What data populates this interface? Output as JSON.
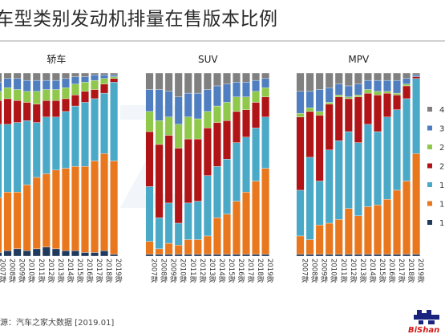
{
  "title": "车型类别发动机排量在售版本比例",
  "source": "源：汽车之家大数据 [2019.01]",
  "logo_text": "BiShan",
  "colors": {
    "s4": "#808080",
    "s3": "#4f7fc0",
    "s2b": "#8fc84a",
    "s2a": "#b01417",
    "s1b": "#4ba9c8",
    "s1a": "#e8771e",
    "s0": "#1f3a5c"
  },
  "chart_data": [
    {
      "type": "bar",
      "stacked": true,
      "title": "轿车",
      "categories": [
        "2007款",
        "2008款",
        "2009款",
        "2010款",
        "2011款",
        "2012款",
        "2013款",
        "2014款",
        "2015款",
        "2016款",
        "2017款",
        "2018款",
        "2019款"
      ],
      "series": [
        {
          "key": "s0",
          "values": [
            2,
            3,
            4,
            3,
            4,
            5,
            4,
            3,
            3,
            2,
            2,
            3,
            1
          ]
        },
        {
          "key": "s1a",
          "values": [
            30,
            32,
            31,
            36,
            39,
            40,
            43,
            45,
            46,
            47,
            50,
            53,
            51
          ]
        },
        {
          "key": "s1b",
          "values": [
            40,
            37,
            38,
            35,
            30,
            31,
            29,
            31,
            33,
            35,
            34,
            33,
            43
          ]
        },
        {
          "key": "s2a",
          "values": [
            13,
            14,
            12,
            10,
            10,
            9,
            9,
            7,
            6,
            6,
            5,
            5,
            2
          ]
        },
        {
          "key": "s2b",
          "values": [
            5,
            6,
            6,
            6,
            7,
            6,
            6,
            6,
            6,
            5,
            5,
            3,
            1
          ]
        },
        {
          "key": "s3",
          "values": [
            5,
            5,
            6,
            6,
            6,
            5,
            5,
            5,
            4,
            3,
            3,
            2,
            1
          ]
        },
        {
          "key": "s4",
          "values": [
            5,
            3,
            3,
            4,
            4,
            4,
            4,
            3,
            2,
            2,
            1,
            1,
            1
          ]
        }
      ],
      "ylim": [
        0,
        100
      ]
    },
    {
      "type": "bar",
      "stacked": true,
      "title": "SUV",
      "categories": [
        "2007款",
        "2008款",
        "2009款",
        "2010款",
        "2011款",
        "2012款",
        "2013款",
        "2014款",
        "2015款",
        "2016款",
        "2017款",
        "2018款",
        "2019款"
      ],
      "series": [
        {
          "key": "s0",
          "values": [
            1,
            1,
            1,
            1,
            1,
            1,
            1,
            1,
            1,
            1,
            1,
            1,
            1
          ]
        },
        {
          "key": "s1a",
          "values": [
            7,
            3,
            6,
            5,
            8,
            8,
            10,
            20,
            22,
            29,
            34,
            40,
            47
          ]
        },
        {
          "key": "s1b",
          "values": [
            30,
            17,
            22,
            12,
            20,
            21,
            33,
            28,
            30,
            32,
            30,
            29,
            28
          ]
        },
        {
          "key": "s2a",
          "values": [
            30,
            40,
            37,
            41,
            35,
            34,
            26,
            24,
            21,
            17,
            15,
            14,
            11
          ]
        },
        {
          "key": "s2b",
          "values": [
            11,
            13,
            10,
            13,
            12,
            11,
            9,
            9,
            10,
            8,
            7,
            6,
            5
          ]
        },
        {
          "key": "s3",
          "values": [
            12,
            17,
            14,
            15,
            13,
            14,
            12,
            11,
            10,
            8,
            8,
            6,
            5
          ]
        },
        {
          "key": "s4",
          "values": [
            9,
            9,
            10,
            13,
            11,
            11,
            9,
            7,
            6,
            5,
            5,
            4,
            3
          ]
        }
      ],
      "ylim": [
        0,
        100
      ]
    },
    {
      "type": "bar",
      "stacked": true,
      "title": "MPV",
      "categories": [
        "2007款",
        "2008款",
        "2009款",
        "2010款",
        "2011款",
        "2012款",
        "2013款",
        "2014款",
        "2015款",
        "2016款",
        "2017款",
        "2018款",
        "2019款"
      ],
      "series": [
        {
          "key": "s0",
          "values": [
            1,
            1,
            1,
            1,
            1,
            1,
            1,
            1,
            1,
            1,
            1,
            1,
            1
          ]
        },
        {
          "key": "s1a",
          "values": [
            10,
            8,
            16,
            17,
            19,
            25,
            21,
            26,
            27,
            30,
            35,
            40,
            55
          ]
        },
        {
          "key": "s1b",
          "values": [
            25,
            45,
            24,
            40,
            43,
            42,
            40,
            45,
            40,
            45,
            44,
            45,
            41
          ]
        },
        {
          "key": "s2a",
          "values": [
            40,
            25,
            36,
            25,
            24,
            18,
            25,
            17,
            20,
            13,
            8,
            7,
            1
          ]
        },
        {
          "key": "s2b",
          "values": [
            2,
            2,
            2,
            1,
            1,
            1,
            1,
            2,
            2,
            1,
            1,
            1,
            0
          ]
        },
        {
          "key": "s3",
          "values": [
            12,
            9,
            12,
            8,
            6,
            6,
            6,
            5,
            6,
            6,
            7,
            3,
            1
          ]
        },
        {
          "key": "s4",
          "values": [
            10,
            10,
            9,
            8,
            6,
            7,
            6,
            4,
            4,
            4,
            4,
            3,
            1
          ]
        }
      ],
      "ylim": [
        0,
        100
      ]
    }
  ],
  "legend": [
    {
      "key": "s4",
      "label": "4"
    },
    {
      "key": "s3",
      "label": "3"
    },
    {
      "key": "s2b",
      "label": "2"
    },
    {
      "key": "s2a",
      "label": "2"
    },
    {
      "key": "s1b",
      "label": "1"
    },
    {
      "key": "s1a",
      "label": "1"
    },
    {
      "key": "s0",
      "label": "1"
    }
  ]
}
